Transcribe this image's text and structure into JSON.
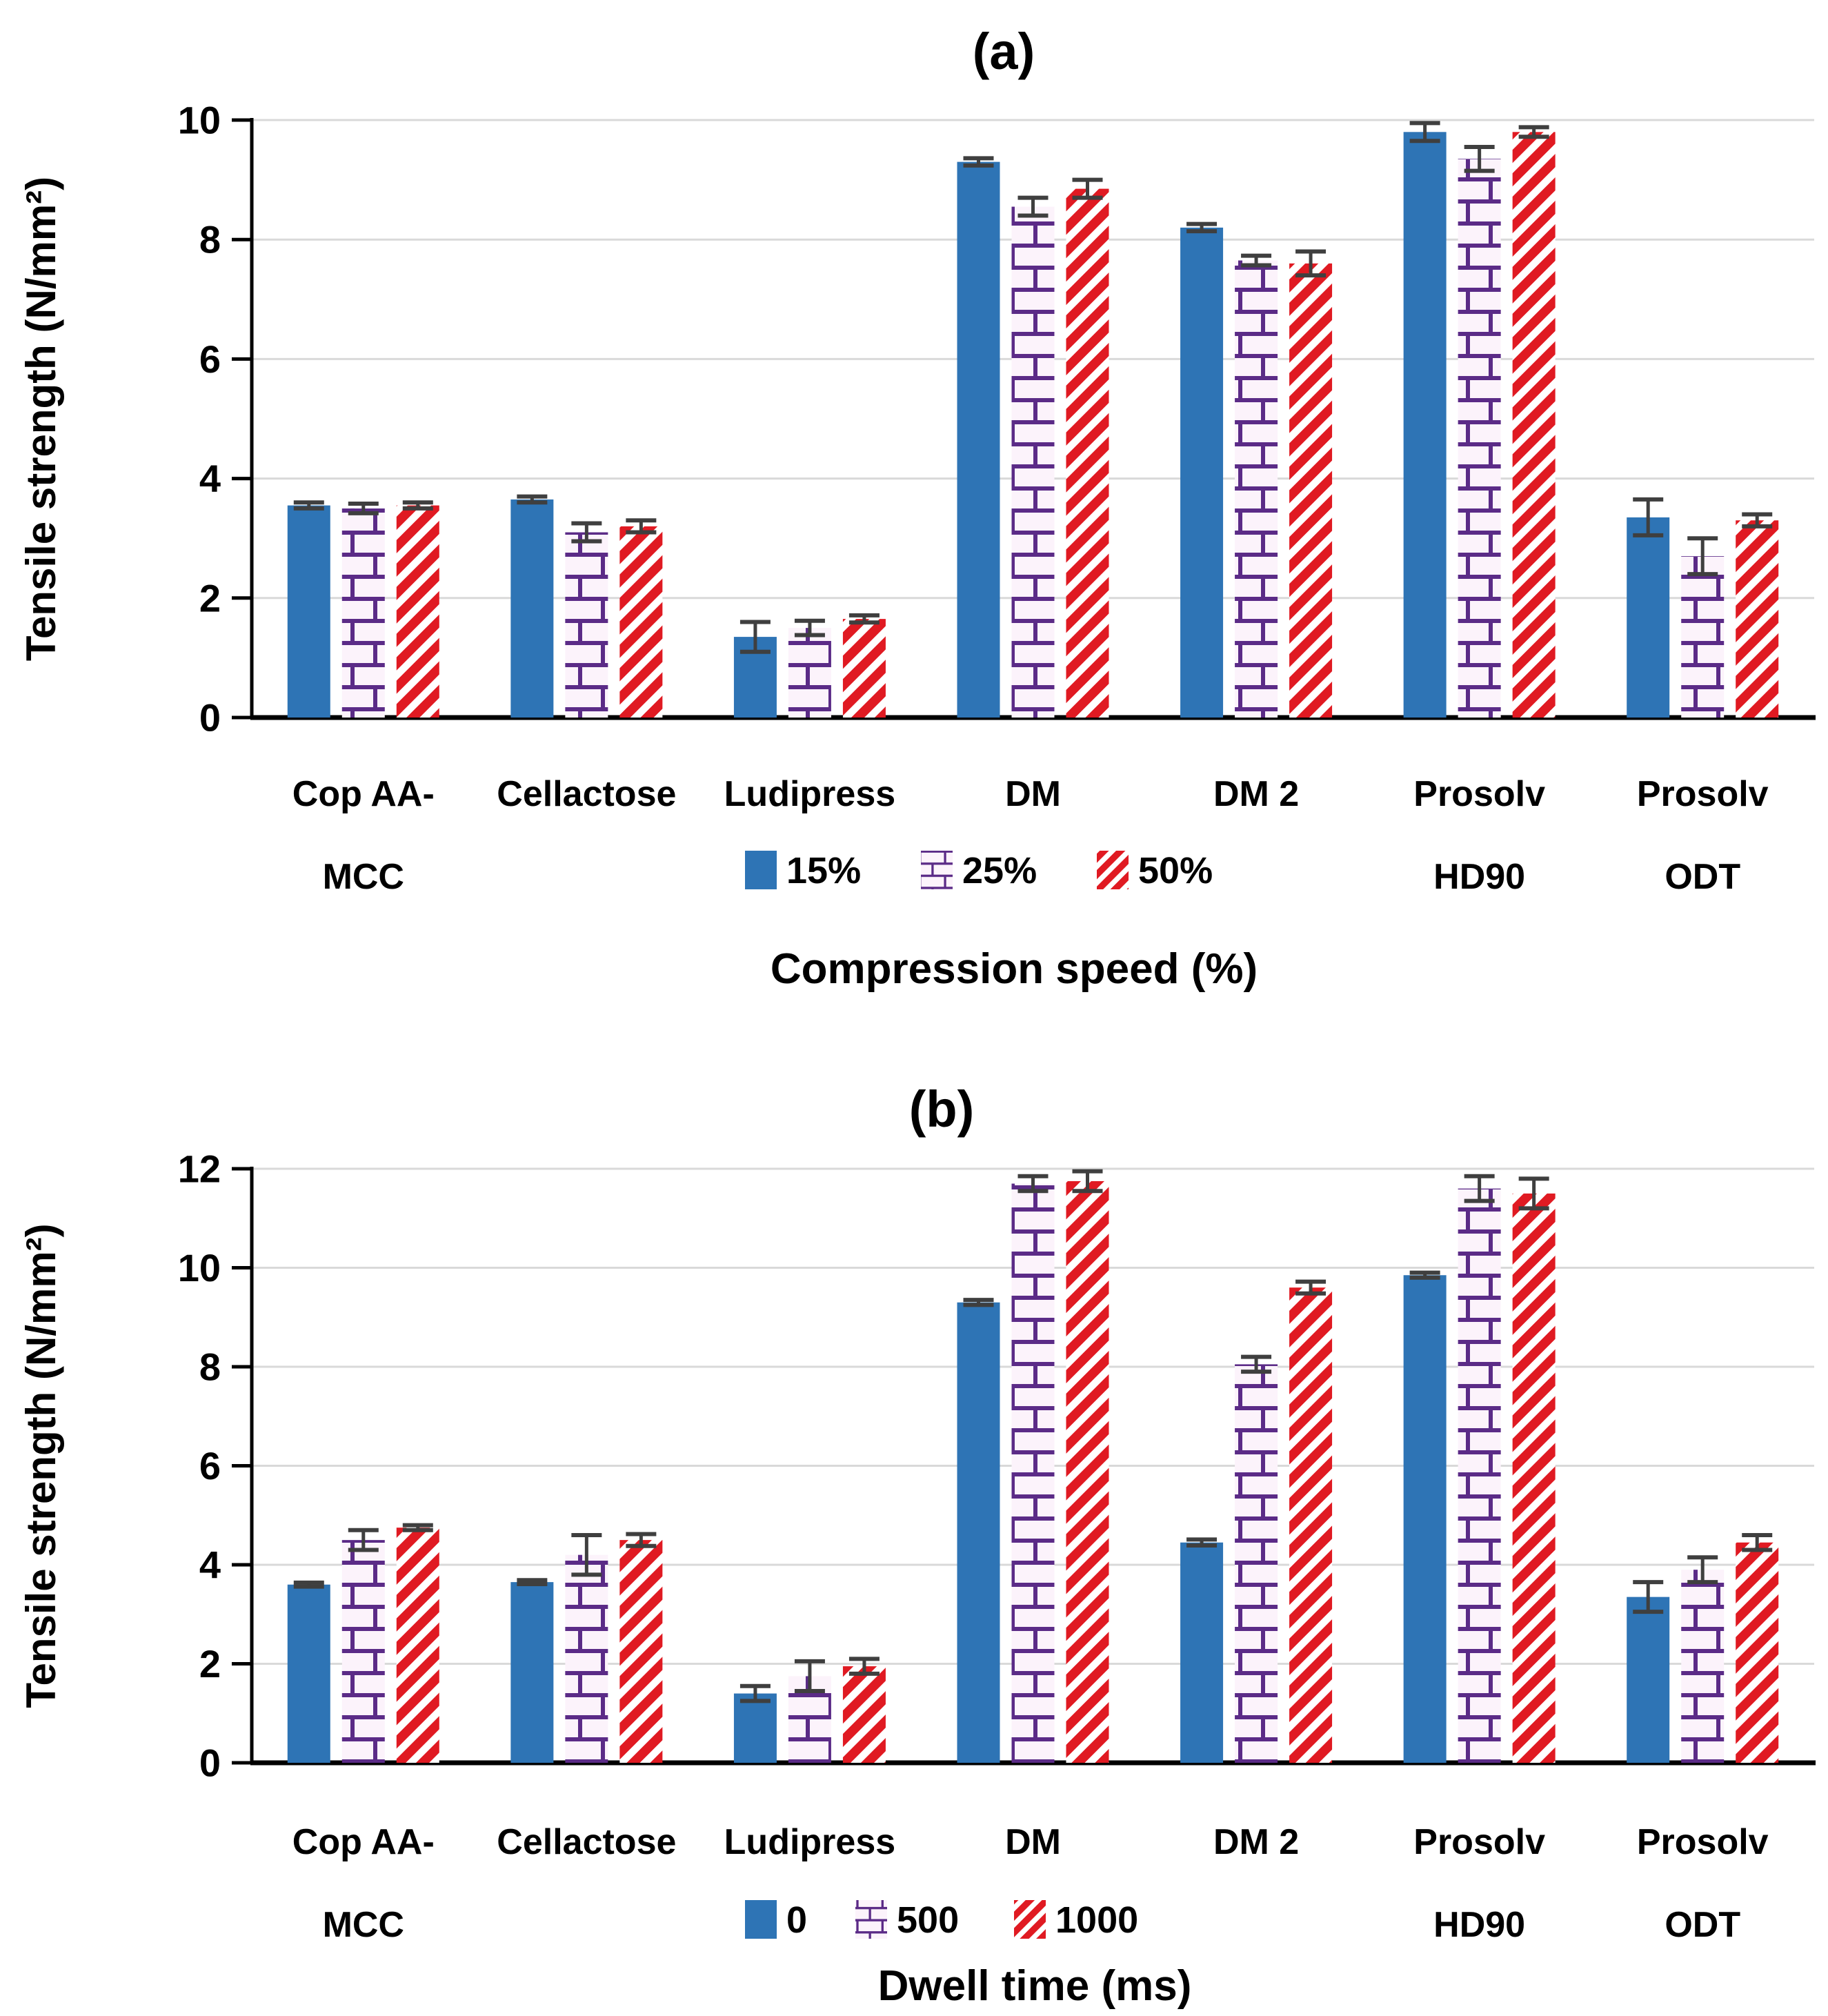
{
  "figure": {
    "background": "#ffffff",
    "panel_titles": {
      "a": "(a)",
      "b": "(b)"
    },
    "colors": {
      "blue": "#2E74B5",
      "purple": "#5B2B87",
      "purple_bg": "#FCF3FB",
      "red": "#E01A22",
      "stripe_bg": "#FFFFFF",
      "grid": "#D9D9D9",
      "axis": "#000000",
      "error_bar": "#3F3F3F",
      "text": "#000000"
    }
  },
  "chart_data": [
    {
      "id": "a",
      "type": "bar",
      "title": "(a)",
      "xlabel": "Compression speed (%)",
      "ylabel": "Tensile strength (N/mm²)",
      "ylim": [
        0,
        10
      ],
      "ytick_step": 2,
      "grid": true,
      "legend_position": "bottom-center",
      "categories": [
        [
          "Cop AA-",
          "MCC"
        ],
        [
          "Cellactose"
        ],
        [
          "Ludipress"
        ],
        [
          "DM"
        ],
        [
          "DM 2"
        ],
        [
          "Prosolv",
          "HD90"
        ],
        [
          "Prosolv",
          "ODT"
        ]
      ],
      "series": [
        {
          "name": "15%",
          "style": "solid-blue",
          "values": [
            3.55,
            3.65,
            1.35,
            9.3,
            8.2,
            9.8,
            3.35
          ],
          "errors": [
            0.05,
            0.05,
            0.25,
            0.06,
            0.06,
            0.15,
            0.3
          ]
        },
        {
          "name": "25%",
          "style": "purple-brick",
          "values": [
            3.5,
            3.1,
            1.5,
            8.55,
            7.65,
            9.35,
            2.7
          ],
          "errors": [
            0.08,
            0.15,
            0.12,
            0.15,
            0.08,
            0.2,
            0.3
          ]
        },
        {
          "name": "50%",
          "style": "red-stripe",
          "values": [
            3.55,
            3.2,
            1.65,
            8.85,
            7.6,
            9.8,
            3.3
          ],
          "errors": [
            0.05,
            0.1,
            0.06,
            0.15,
            0.2,
            0.08,
            0.1
          ]
        }
      ]
    },
    {
      "id": "b",
      "type": "bar",
      "title": "(b)",
      "xlabel": "Dwell time (ms)",
      "ylabel": "Tensile strength (N/mm²)",
      "ylim": [
        0,
        12
      ],
      "ytick_step": 2,
      "grid": true,
      "legend_position": "bottom-center",
      "categories": [
        [
          "Cop AA-",
          "MCC"
        ],
        [
          "Cellactose"
        ],
        [
          "Ludipress"
        ],
        [
          "DM"
        ],
        [
          "DM 2"
        ],
        [
          "Prosolv",
          "HD90"
        ],
        [
          "Prosolv",
          "ODT"
        ]
      ],
      "series": [
        {
          "name": "0",
          "style": "solid-blue",
          "values": [
            3.6,
            3.65,
            1.4,
            9.3,
            4.45,
            9.85,
            3.35
          ],
          "errors": [
            0.04,
            0.04,
            0.15,
            0.05,
            0.06,
            0.05,
            0.3
          ]
        },
        {
          "name": "500",
          "style": "purple-brick",
          "values": [
            4.5,
            4.2,
            1.75,
            11.7,
            8.05,
            11.6,
            3.9
          ],
          "errors": [
            0.2,
            0.4,
            0.3,
            0.15,
            0.15,
            0.25,
            0.25
          ]
        },
        {
          "name": "1000",
          "style": "red-stripe",
          "values": [
            4.75,
            4.5,
            1.95,
            11.75,
            9.6,
            11.5,
            4.45
          ],
          "errors": [
            0.05,
            0.12,
            0.15,
            0.2,
            0.12,
            0.3,
            0.15
          ]
        }
      ]
    }
  ]
}
